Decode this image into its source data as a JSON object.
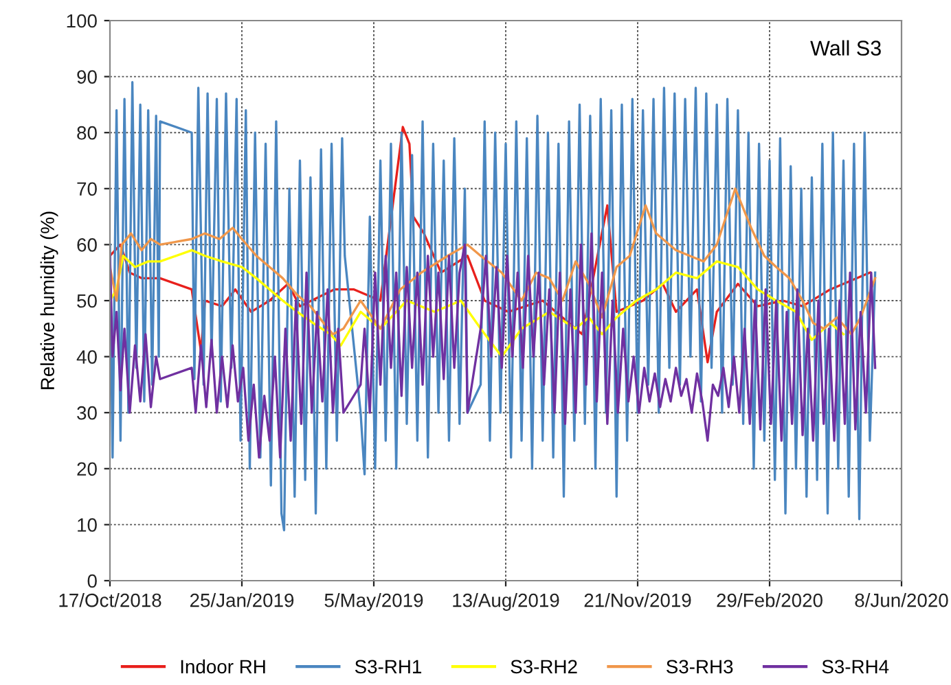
{
  "chart_data": {
    "type": "line",
    "title": "Wall S3",
    "ylabel": "Relative humidity (%)",
    "xlim": [
      "2018-10-17",
      "2020-06-08"
    ],
    "xticks": [
      {
        "value": "2018-10-17",
        "label": "17/Oct/2018"
      },
      {
        "value": "2019-01-25",
        "label": "25/Jan/2019"
      },
      {
        "value": "2019-05-05",
        "label": "5/May/2019"
      },
      {
        "value": "2019-08-13",
        "label": "13/Aug/2019"
      },
      {
        "value": "2019-11-21",
        "label": "21/Nov/2019"
      },
      {
        "value": "2020-02-29",
        "label": "29/Feb/2020"
      },
      {
        "value": "2020-06-08",
        "label": "8/Jun/2020"
      }
    ],
    "ylim": [
      0,
      100
    ],
    "yticks": [
      0,
      10,
      20,
      30,
      40,
      50,
      60,
      70,
      80,
      90,
      100
    ],
    "grid": true,
    "legend": "bottom",
    "marker": "none",
    "line_style": "solid",
    "series": [
      {
        "name": "Indoor RH",
        "color": "#e8201c",
        "x": [
          "2018-10-17",
          "2018-10-25",
          "2018-11-01",
          "2018-11-10",
          "2018-11-24",
          "2018-12-18",
          "2018-12-25",
          "2018-12-28",
          "2019-01-10",
          "2019-01-20",
          "2019-02-01",
          "2019-02-15",
          "2019-03-01",
          "2019-03-10",
          "2019-04-05",
          "2019-04-20",
          "2019-05-10",
          "2019-05-27",
          "2019-06-01",
          "2019-06-04",
          "2019-06-12",
          "2019-06-25",
          "2019-07-15",
          "2019-07-28",
          "2019-08-15",
          "2019-09-10",
          "2019-10-10",
          "2019-10-29",
          "2019-11-05",
          "2019-11-25",
          "2019-12-10",
          "2019-12-20",
          "2020-01-05",
          "2020-01-13",
          "2020-01-20",
          "2020-02-05",
          "2020-02-20",
          "2020-03-10",
          "2020-03-25",
          "2020-04-15",
          "2020-05-15"
        ],
        "values": [
          58,
          60,
          55,
          54,
          54,
          52,
          41,
          50,
          49,
          52,
          48,
          50,
          53,
          49,
          52,
          52,
          50,
          81,
          78,
          65,
          62,
          55,
          58,
          50,
          48,
          50,
          44,
          67,
          48,
          50,
          53,
          48,
          52,
          39,
          48,
          53,
          49,
          50,
          49,
          52,
          55
        ]
      },
      {
        "name": "S3-RH1",
        "color": "#4a86c0",
        "x": [
          "2018-10-17",
          "2018-10-19",
          "2018-10-22",
          "2018-10-25",
          "2018-10-28",
          "2018-10-31",
          "2018-11-03",
          "2018-11-06",
          "2018-11-09",
          "2018-11-12",
          "2018-11-15",
          "2018-11-18",
          "2018-11-21",
          "2018-11-23",
          "2018-11-24",
          "2018-12-18",
          "2018-12-20",
          "2018-12-23",
          "2018-12-27",
          "2018-12-30",
          "2019-01-02",
          "2019-01-06",
          "2019-01-09",
          "2019-01-13",
          "2019-01-17",
          "2019-01-21",
          "2019-01-24",
          "2019-01-28",
          "2019-01-31",
          "2019-02-04",
          "2019-02-08",
          "2019-02-12",
          "2019-02-16",
          "2019-02-20",
          "2019-02-24",
          "2019-02-26",
          "2019-03-02",
          "2019-03-06",
          "2019-03-10",
          "2019-03-14",
          "2019-03-18",
          "2019-03-22",
          "2019-03-26",
          "2019-03-30",
          "2019-04-03",
          "2019-04-07",
          "2019-04-11",
          "2019-04-13",
          "2019-04-25",
          "2019-04-28",
          "2019-05-02",
          "2019-05-06",
          "2019-05-10",
          "2019-05-14",
          "2019-05-18",
          "2019-05-22",
          "2019-05-26",
          "2019-05-30",
          "2019-06-03",
          "2019-06-07",
          "2019-06-11",
          "2019-06-15",
          "2019-06-19",
          "2019-06-23",
          "2019-06-27",
          "2019-07-01",
          "2019-07-05",
          "2019-07-09",
          "2019-07-13",
          "2019-07-15",
          "2019-07-25",
          "2019-07-28",
          "2019-08-01",
          "2019-08-05",
          "2019-08-09",
          "2019-08-13",
          "2019-08-17",
          "2019-08-21",
          "2019-08-25",
          "2019-08-29",
          "2019-09-02",
          "2019-09-06",
          "2019-09-10",
          "2019-09-14",
          "2019-09-18",
          "2019-09-22",
          "2019-09-26",
          "2019-09-30",
          "2019-10-04",
          "2019-10-08",
          "2019-10-12",
          "2019-10-16",
          "2019-10-20",
          "2019-10-24",
          "2019-10-28",
          "2019-11-01",
          "2019-11-05",
          "2019-11-09",
          "2019-11-13",
          "2019-11-17",
          "2019-11-21",
          "2019-11-25",
          "2019-11-29",
          "2019-12-03",
          "2019-12-07",
          "2019-12-11",
          "2019-12-15",
          "2019-12-19",
          "2019-12-23",
          "2019-12-27",
          "2019-12-31",
          "2020-01-04",
          "2020-01-08",
          "2020-01-12",
          "2020-01-16",
          "2020-01-20",
          "2020-01-24",
          "2020-01-28",
          "2020-02-01",
          "2020-02-05",
          "2020-02-09",
          "2020-02-13",
          "2020-02-17",
          "2020-02-21",
          "2020-02-25",
          "2020-02-29",
          "2020-03-04",
          "2020-03-08",
          "2020-03-12",
          "2020-03-16",
          "2020-03-20",
          "2020-03-24",
          "2020-03-28",
          "2020-04-01",
          "2020-04-05",
          "2020-04-09",
          "2020-04-13",
          "2020-04-17",
          "2020-04-21",
          "2020-04-25",
          "2020-04-29",
          "2020-05-03",
          "2020-05-07",
          "2020-05-11",
          "2020-05-15",
          "2020-05-19"
        ],
        "values": [
          60,
          22,
          84,
          25,
          86,
          30,
          89,
          38,
          85,
          32,
          84,
          35,
          83,
          40,
          82,
          80,
          36,
          88,
          35,
          87,
          40,
          86,
          32,
          87,
          38,
          86,
          25,
          84,
          20,
          80,
          22,
          78,
          17,
          82,
          12,
          9,
          70,
          15,
          75,
          18,
          72,
          12,
          77,
          20,
          78,
          25,
          79,
          58,
          30,
          19,
          65,
          20,
          75,
          25,
          78,
          20,
          80,
          28,
          76,
          25,
          82,
          22,
          78,
          30,
          75,
          25,
          79,
          28,
          70,
          30,
          35,
          82,
          25,
          80,
          30,
          78,
          22,
          82,
          25,
          79,
          20,
          83,
          25,
          80,
          22,
          78,
          15,
          82,
          25,
          85,
          28,
          83,
          20,
          86,
          30,
          84,
          15,
          85,
          25,
          86,
          30,
          84,
          35,
          86,
          30,
          88,
          38,
          87,
          35,
          86,
          40,
          88,
          32,
          87,
          38,
          85,
          30,
          86,
          35,
          84,
          28,
          80,
          20,
          78,
          25,
          75,
          18,
          79,
          12,
          74,
          20,
          70,
          15,
          72,
          18,
          78,
          12,
          80,
          20,
          75,
          15,
          78,
          11,
          80,
          25,
          55
        ]
      },
      {
        "name": "S3-RH2",
        "color": "#ffff00",
        "x": [
          "2018-10-17",
          "2018-10-22",
          "2018-10-27",
          "2018-11-05",
          "2018-11-15",
          "2018-11-24",
          "2018-12-18",
          "2018-12-28",
          "2019-01-10",
          "2019-01-25",
          "2019-02-05",
          "2019-02-15",
          "2019-02-25",
          "2019-03-08",
          "2019-03-20",
          "2019-04-02",
          "2019-04-10",
          "2019-04-25",
          "2019-05-10",
          "2019-05-30",
          "2019-06-20",
          "2019-07-10",
          "2019-07-25",
          "2019-08-10",
          "2019-08-25",
          "2019-09-15",
          "2019-10-05",
          "2019-10-15",
          "2019-10-25",
          "2019-11-05",
          "2019-11-20",
          "2019-12-05",
          "2019-12-20",
          "2020-01-05",
          "2020-01-20",
          "2020-02-05",
          "2020-02-20",
          "2020-03-05",
          "2020-03-20",
          "2020-04-01",
          "2020-04-15",
          "2020-04-25"
        ],
        "values": [
          50,
          52,
          58,
          56,
          57,
          57,
          59,
          58,
          57,
          56,
          54,
          52,
          50,
          48,
          46,
          44,
          42,
          48,
          45,
          50,
          48,
          50,
          45,
          40,
          45,
          48,
          45,
          47,
          44,
          47,
          50,
          52,
          55,
          54,
          57,
          56,
          52,
          50,
          48,
          43,
          46,
          44
        ]
      },
      {
        "name": "S3-RH3",
        "color": "#f0974a",
        "x": [
          "2018-10-17",
          "2018-10-22",
          "2018-10-26",
          "2018-11-02",
          "2018-11-10",
          "2018-11-17",
          "2018-11-24",
          "2018-12-18",
          "2018-12-28",
          "2019-01-08",
          "2019-01-18",
          "2019-01-25",
          "2019-02-05",
          "2019-02-15",
          "2019-02-25",
          "2019-03-08",
          "2019-03-18",
          "2019-03-28",
          "2019-04-04",
          "2019-04-12",
          "2019-04-25",
          "2019-05-10",
          "2019-05-25",
          "2019-06-10",
          "2019-06-30",
          "2019-07-15",
          "2019-07-25",
          "2019-08-10",
          "2019-08-25",
          "2019-09-05",
          "2019-09-15",
          "2019-09-25",
          "2019-10-05",
          "2019-10-15",
          "2019-10-25",
          "2019-11-05",
          "2019-11-15",
          "2019-11-27",
          "2019-12-05",
          "2019-12-20",
          "2020-01-10",
          "2020-01-20",
          "2020-02-03",
          "2020-02-15",
          "2020-02-25",
          "2020-03-05",
          "2020-03-15",
          "2020-03-25",
          "2020-04-02",
          "2020-04-10",
          "2020-04-20",
          "2020-05-01",
          "2020-05-08",
          "2020-05-19"
        ],
        "values": [
          56,
          50,
          60,
          62,
          59,
          61,
          60,
          61,
          62,
          61,
          63,
          61,
          58,
          56,
          54,
          51,
          49,
          46,
          44,
          45,
          50,
          45,
          52,
          55,
          58,
          60,
          58,
          55,
          50,
          55,
          54,
          50,
          57,
          53,
          47,
          56,
          58,
          67,
          62,
          59,
          57,
          60,
          70,
          63,
          58,
          56,
          54,
          50,
          46,
          45,
          47,
          44,
          47,
          54
        ]
      },
      {
        "name": "S3-RH4",
        "color": "#7030a0",
        "x": [
          "2018-10-17",
          "2018-10-19",
          "2018-10-22",
          "2018-10-25",
          "2018-10-28",
          "2018-11-01",
          "2018-11-05",
          "2018-11-09",
          "2018-11-13",
          "2018-11-17",
          "2018-11-21",
          "2018-11-24",
          "2018-12-18",
          "2018-12-21",
          "2018-12-25",
          "2018-12-29",
          "2019-01-02",
          "2019-01-06",
          "2019-01-10",
          "2019-01-14",
          "2019-01-18",
          "2019-01-22",
          "2019-01-26",
          "2019-01-30",
          "2019-02-03",
          "2019-02-07",
          "2019-02-11",
          "2019-02-15",
          "2019-02-19",
          "2019-02-23",
          "2019-02-27",
          "2019-03-03",
          "2019-03-07",
          "2019-03-11",
          "2019-03-15",
          "2019-03-19",
          "2019-03-23",
          "2019-03-27",
          "2019-03-31",
          "2019-04-04",
          "2019-04-08",
          "2019-04-12",
          "2019-04-25",
          "2019-04-28",
          "2019-05-02",
          "2019-05-06",
          "2019-05-10",
          "2019-05-14",
          "2019-05-18",
          "2019-05-22",
          "2019-05-26",
          "2019-05-30",
          "2019-06-03",
          "2019-06-07",
          "2019-06-11",
          "2019-06-15",
          "2019-06-19",
          "2019-06-23",
          "2019-06-27",
          "2019-07-01",
          "2019-07-05",
          "2019-07-09",
          "2019-07-13",
          "2019-07-15",
          "2019-07-25",
          "2019-07-29",
          "2019-08-02",
          "2019-08-06",
          "2019-08-10",
          "2019-08-14",
          "2019-08-18",
          "2019-08-22",
          "2019-08-26",
          "2019-08-30",
          "2019-09-03",
          "2019-09-07",
          "2019-09-11",
          "2019-09-15",
          "2019-09-19",
          "2019-09-23",
          "2019-09-27",
          "2019-10-01",
          "2019-10-05",
          "2019-10-09",
          "2019-10-13",
          "2019-10-17",
          "2019-10-21",
          "2019-10-25",
          "2019-10-29",
          "2019-11-02",
          "2019-11-06",
          "2019-11-10",
          "2019-11-14",
          "2019-11-18",
          "2019-11-22",
          "2019-11-26",
          "2019-11-30",
          "2019-12-04",
          "2019-12-08",
          "2019-12-12",
          "2019-12-16",
          "2019-12-20",
          "2019-12-24",
          "2019-12-28",
          "2020-01-01",
          "2020-01-05",
          "2020-01-09",
          "2020-01-13",
          "2020-01-17",
          "2020-01-21",
          "2020-01-25",
          "2020-01-29",
          "2020-02-02",
          "2020-02-06",
          "2020-02-10",
          "2020-02-14",
          "2020-02-18",
          "2020-02-22",
          "2020-02-26",
          "2020-03-01",
          "2020-03-05",
          "2020-03-09",
          "2020-03-13",
          "2020-03-17",
          "2020-03-21",
          "2020-03-25",
          "2020-03-29",
          "2020-04-02",
          "2020-04-06",
          "2020-04-10",
          "2020-04-14",
          "2020-04-18",
          "2020-04-22",
          "2020-04-26",
          "2020-04-30",
          "2020-05-04",
          "2020-05-08",
          "2020-05-12",
          "2020-05-16",
          "2020-05-19"
        ],
        "values": [
          58,
          40,
          48,
          34,
          45,
          30,
          42,
          32,
          44,
          31,
          40,
          36,
          38,
          30,
          42,
          31,
          43,
          30,
          40,
          31,
          42,
          32,
          38,
          25,
          35,
          22,
          33,
          25,
          40,
          22,
          45,
          25,
          50,
          28,
          55,
          30,
          48,
          32,
          52,
          30,
          45,
          30,
          35,
          45,
          30,
          55,
          35,
          58,
          38,
          55,
          33,
          56,
          38,
          55,
          35,
          58,
          40,
          55,
          36,
          58,
          38,
          55,
          60,
          30,
          45,
          58,
          40,
          56,
          38,
          58,
          40,
          55,
          38,
          58,
          40,
          55,
          35,
          52,
          30,
          55,
          28,
          52,
          30,
          60,
          35,
          62,
          32,
          55,
          28,
          50,
          30,
          45,
          32,
          40,
          30,
          38,
          32,
          37,
          31,
          36,
          32,
          38,
          33,
          36,
          30,
          37,
          32,
          25,
          35,
          33,
          38,
          31,
          40,
          30,
          45,
          28,
          50,
          27,
          52,
          28,
          50,
          25,
          48,
          28,
          52,
          26,
          45,
          25,
          50,
          28,
          45,
          25,
          50,
          28,
          55,
          27,
          48,
          30,
          55,
          38
        ]
      }
    ]
  }
}
